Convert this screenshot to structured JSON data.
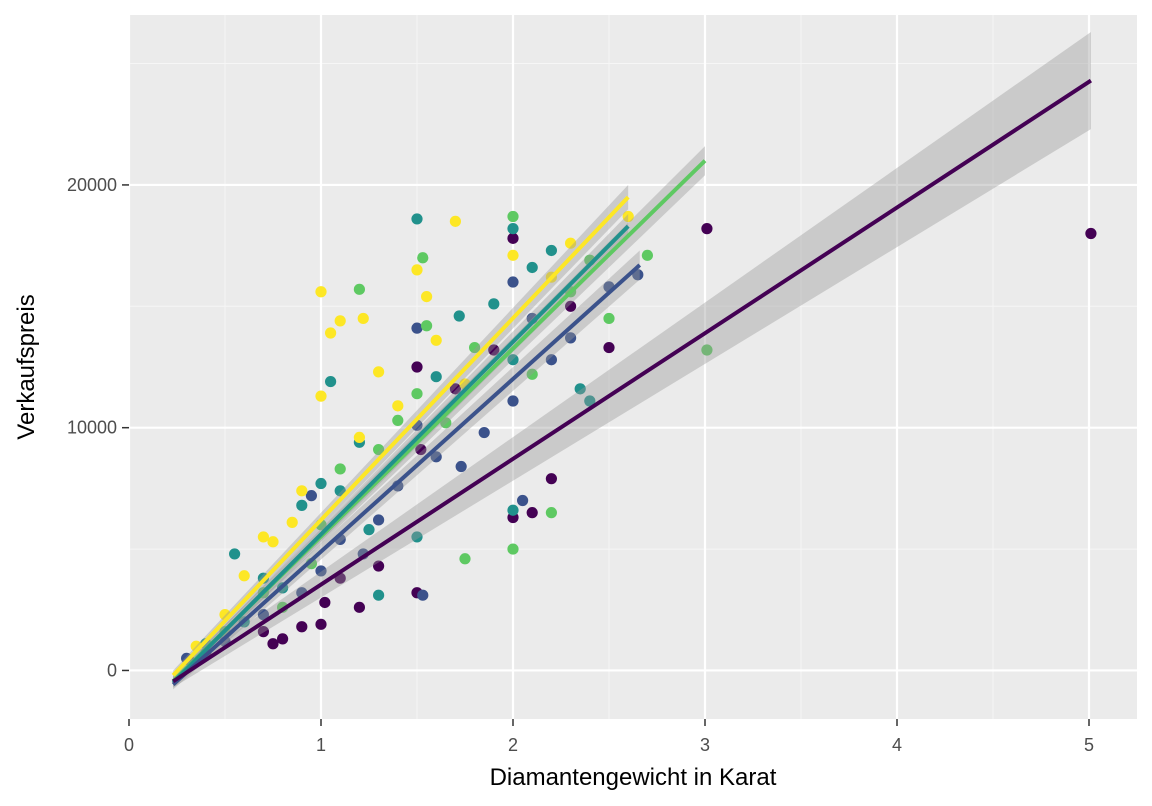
{
  "chart_data": {
    "type": "scatter",
    "title": "",
    "xlabel": "Diamantengewicht in Karat",
    "ylabel": "Verkaufspreis",
    "xlim": [
      0,
      5.25
    ],
    "ylim": [
      -2000,
      27000
    ],
    "x_ticks": [
      0,
      1,
      2,
      3,
      4,
      5
    ],
    "x_tick_labels": [
      "0",
      "1",
      "2",
      "3",
      "4",
      "5"
    ],
    "y_ticks": [
      0,
      10000,
      20000
    ],
    "y_tick_labels": [
      "0",
      "10000",
      "20000"
    ],
    "grid": true,
    "legend": "none",
    "colors": {
      "panel_bg": "#ebebeb",
      "grid_major": "#ffffff",
      "ribbon": "#999999",
      "palette": [
        "#440154",
        "#3b528b",
        "#21918c",
        "#5ec962",
        "#fde725"
      ]
    },
    "series": [
      {
        "color": "#440154",
        "fit": {
          "x_start": 0.23,
          "x_end": 5.01,
          "y_start": -450,
          "y_end": 24300,
          "se_start": 250,
          "se_end": 2000
        },
        "points": [
          [
            3.01,
            18200
          ],
          [
            5.01,
            18000
          ],
          [
            2.5,
            13300
          ],
          [
            2.2,
            7900
          ],
          [
            2.1,
            6500
          ],
          [
            2.0,
            6300
          ],
          [
            1.5,
            3200
          ],
          [
            1.2,
            2600
          ],
          [
            0.9,
            1800
          ],
          [
            0.8,
            1300
          ],
          [
            0.75,
            1100
          ],
          [
            1.02,
            2800
          ],
          [
            1.0,
            1900
          ],
          [
            1.52,
            9100
          ],
          [
            1.5,
            12500
          ],
          [
            2.0,
            17800
          ],
          [
            1.7,
            11600
          ],
          [
            1.9,
            13200
          ],
          [
            0.31,
            450
          ],
          [
            0.4,
            700
          ],
          [
            0.7,
            1600
          ],
          [
            1.1,
            3800
          ],
          [
            1.3,
            4300
          ],
          [
            2.3,
            15000
          ]
        ]
      },
      {
        "color": "#3b528b",
        "fit": {
          "x_start": 0.23,
          "x_end": 2.66,
          "y_start": -580,
          "y_end": 16700,
          "se_start": 200,
          "se_end": 600
        },
        "points": [
          [
            2.65,
            16300
          ],
          [
            2.3,
            13700
          ],
          [
            2.05,
            7000
          ],
          [
            1.73,
            8400
          ],
          [
            1.53,
            3100
          ],
          [
            1.22,
            4800
          ],
          [
            1.1,
            5400
          ],
          [
            0.9,
            3200
          ],
          [
            1.5,
            10100
          ],
          [
            2.0,
            16000
          ],
          [
            1.85,
            9800
          ],
          [
            1.3,
            6200
          ],
          [
            0.5,
            1200
          ],
          [
            0.7,
            2300
          ],
          [
            1.0,
            4100
          ],
          [
            2.5,
            15800
          ],
          [
            1.5,
            14100
          ],
          [
            2.0,
            11100
          ],
          [
            0.95,
            7200
          ],
          [
            1.6,
            8800
          ],
          [
            0.3,
            500
          ],
          [
            2.2,
            12800
          ],
          [
            1.4,
            7600
          ],
          [
            2.1,
            14500
          ]
        ]
      },
      {
        "color": "#21918c",
        "fit": {
          "x_start": 0.23,
          "x_end": 2.6,
          "y_start": -500,
          "y_end": 18300,
          "se_start": 200,
          "se_end": 500
        },
        "points": [
          [
            1.5,
            18600
          ],
          [
            2.0,
            18200
          ],
          [
            2.4,
            11100
          ],
          [
            2.0,
            6600
          ],
          [
            1.72,
            14600
          ],
          [
            1.3,
            3100
          ],
          [
            1.05,
            11900
          ],
          [
            0.8,
            3400
          ],
          [
            0.55,
            4800
          ],
          [
            1.0,
            7700
          ],
          [
            1.5,
            5500
          ],
          [
            2.0,
            12800
          ],
          [
            2.35,
            11600
          ],
          [
            0.9,
            6800
          ],
          [
            1.2,
            9400
          ],
          [
            1.6,
            12100
          ],
          [
            0.6,
            2000
          ],
          [
            0.4,
            1100
          ],
          [
            2.2,
            17300
          ],
          [
            1.9,
            15100
          ],
          [
            1.25,
            5800
          ],
          [
            1.1,
            7400
          ],
          [
            0.7,
            3800
          ],
          [
            2.1,
            16600
          ]
        ]
      },
      {
        "color": "#5ec962",
        "fit": {
          "x_start": 0.23,
          "x_end": 3.0,
          "y_start": -440,
          "y_end": 21000,
          "se_start": 200,
          "se_end": 600
        },
        "points": [
          [
            3.01,
            13200
          ],
          [
            2.7,
            17100
          ],
          [
            2.5,
            14500
          ],
          [
            2.2,
            6500
          ],
          [
            2.0,
            5000
          ],
          [
            1.75,
            4600
          ],
          [
            1.2,
            15700
          ],
          [
            1.53,
            17000
          ],
          [
            2.0,
            18700
          ],
          [
            1.5,
            11400
          ],
          [
            1.3,
            9100
          ],
          [
            1.0,
            6000
          ],
          [
            0.8,
            2600
          ],
          [
            2.1,
            12200
          ],
          [
            1.8,
            13300
          ],
          [
            2.3,
            15600
          ],
          [
            1.4,
            10300
          ],
          [
            0.7,
            3200
          ],
          [
            0.5,
            1600
          ],
          [
            1.1,
            8300
          ],
          [
            1.65,
            10200
          ],
          [
            2.4,
            16900
          ],
          [
            0.95,
            4400
          ],
          [
            1.55,
            14200
          ]
        ]
      },
      {
        "color": "#fde725",
        "fit": {
          "x_start": 0.23,
          "x_end": 2.6,
          "y_start": -200,
          "y_end": 19500,
          "se_start": 200,
          "se_end": 500
        },
        "points": [
          [
            1.0,
            15600
          ],
          [
            1.7,
            18500
          ],
          [
            2.6,
            18700
          ],
          [
            1.1,
            14400
          ],
          [
            1.22,
            14500
          ],
          [
            1.5,
            16500
          ],
          [
            2.0,
            17100
          ],
          [
            0.7,
            5500
          ],
          [
            0.75,
            5300
          ],
          [
            1.0,
            11300
          ],
          [
            0.9,
            7400
          ],
          [
            1.3,
            12300
          ],
          [
            1.6,
            13600
          ],
          [
            2.3,
            17600
          ],
          [
            0.5,
            2300
          ],
          [
            0.35,
            1000
          ],
          [
            1.2,
            9600
          ],
          [
            1.55,
            15400
          ],
          [
            0.6,
            3900
          ],
          [
            1.05,
            13900
          ],
          [
            2.2,
            16200
          ],
          [
            1.75,
            11800
          ],
          [
            0.85,
            6100
          ],
          [
            1.4,
            10900
          ]
        ]
      }
    ]
  }
}
